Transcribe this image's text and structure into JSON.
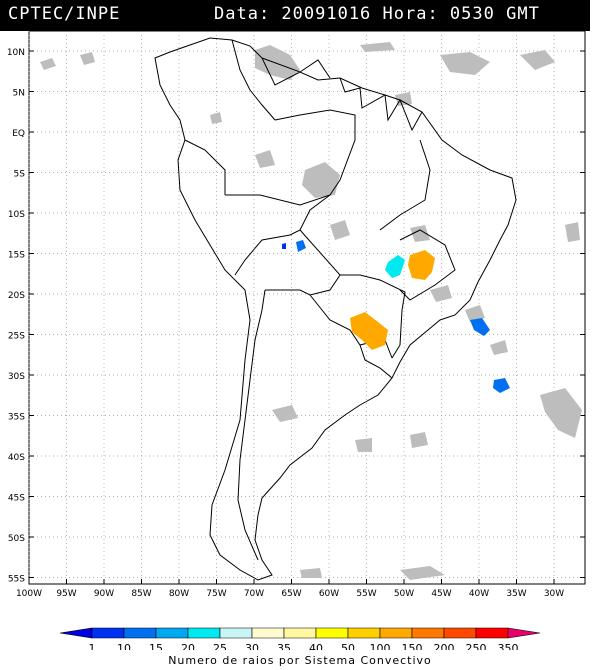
{
  "header": {
    "source": "CPTEC/INPE",
    "date_time": "Data: 20091016 Hora: 0530 GMT"
  },
  "map": {
    "lat_labels": [
      "10N",
      "5N",
      "EQ",
      "5S",
      "10S",
      "15S",
      "20S",
      "25S",
      "30S",
      "35S",
      "40S",
      "45S",
      "50S",
      "55S"
    ],
    "lon_labels": [
      "100W",
      "95W",
      "90W",
      "85W",
      "80W",
      "75W",
      "70W",
      "65W",
      "60W",
      "55W",
      "50W",
      "45W",
      "40W",
      "35W",
      "30W"
    ],
    "colors": {
      "cloud": "#bdbdbd",
      "border": "#000000",
      "grid": "#999999"
    }
  },
  "legend": {
    "values": [
      "1",
      "10",
      "15",
      "20",
      "25",
      "30",
      "35",
      "40",
      "50",
      "100",
      "150",
      "200",
      "250",
      "350"
    ],
    "colors": [
      "#0000e0",
      "#0030f0",
      "#0070f0",
      "#00a8f0",
      "#00e8f0",
      "#c8f5f5",
      "#fffbd0",
      "#fff8a0",
      "#ffff00",
      "#ffd000",
      "#ffa800",
      "#ff7800",
      "#ff4800",
      "#ff0000",
      "#e8006a"
    ],
    "caption": "Numero de raios por Sistema Convectivo"
  }
}
